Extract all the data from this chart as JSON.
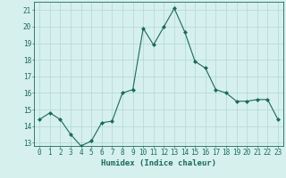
{
  "x": [
    0,
    1,
    2,
    3,
    4,
    5,
    6,
    7,
    8,
    9,
    10,
    11,
    12,
    13,
    14,
    15,
    16,
    17,
    18,
    19,
    20,
    21,
    22,
    23
  ],
  "y": [
    14.4,
    14.8,
    14.4,
    13.5,
    12.8,
    13.1,
    14.2,
    14.3,
    16.0,
    16.2,
    19.9,
    18.9,
    20.0,
    21.1,
    19.7,
    17.9,
    17.5,
    16.2,
    16.0,
    15.5,
    15.5,
    15.6,
    15.6,
    14.4
  ],
  "line_color": "#1a6b5a",
  "marker": "D",
  "marker_size": 2,
  "bg_color": "#d6f0ee",
  "grid_color": "#b0d8d4",
  "axis_color": "#1a6b5a",
  "xlabel": "Humidex (Indice chaleur)",
  "ylim": [
    12.8,
    21.5
  ],
  "yticks": [
    13,
    14,
    15,
    16,
    17,
    18,
    19,
    20,
    21
  ],
  "xticks": [
    0,
    1,
    2,
    3,
    4,
    5,
    6,
    7,
    8,
    9,
    10,
    11,
    12,
    13,
    14,
    15,
    16,
    17,
    18,
    19,
    20,
    21,
    22,
    23
  ],
  "xlim": [
    -0.5,
    23.5
  ],
  "label_fontsize": 6.5,
  "tick_fontsize": 5.5
}
